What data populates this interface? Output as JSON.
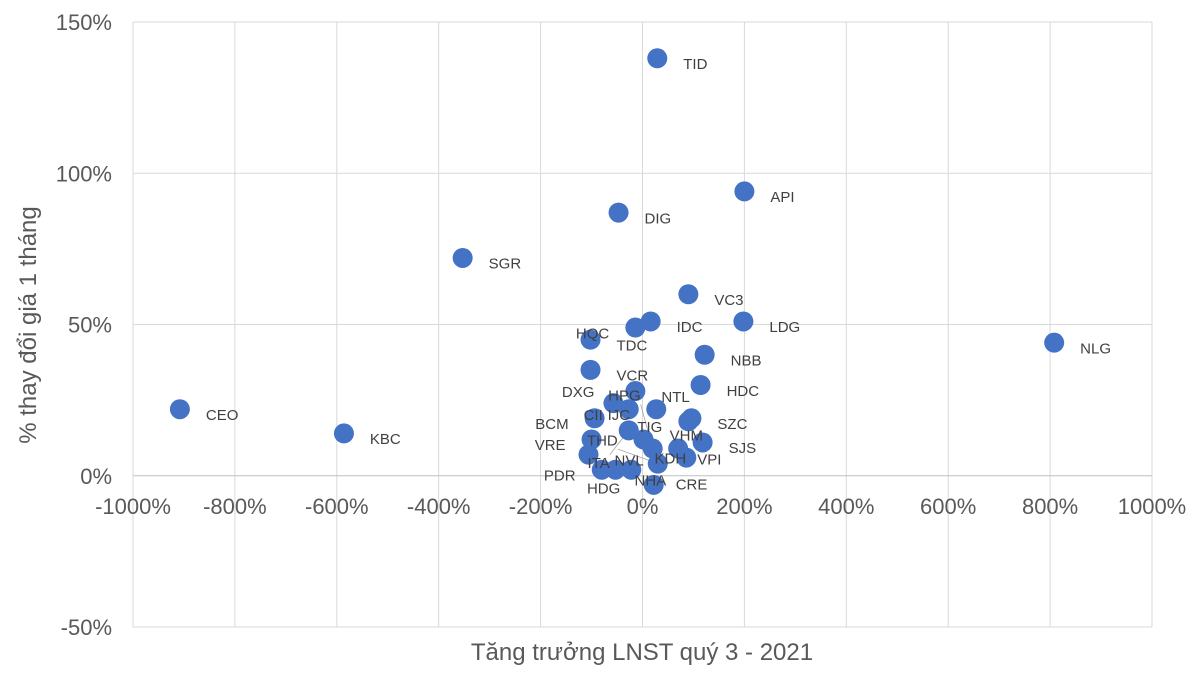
{
  "chart_data": {
    "type": "scatter",
    "title": "",
    "xlabel": "Tăng trưởng LNST quý 3 - 2021",
    "ylabel": "% thay đổi giá 1 tháng",
    "xlim": [
      -1000,
      1000
    ],
    "ylim": [
      -50,
      150
    ],
    "xticks": [
      -1000,
      -800,
      -600,
      -400,
      -200,
      0,
      200,
      400,
      600,
      800,
      1000
    ],
    "yticks": [
      -50,
      0,
      50,
      100,
      150
    ],
    "tick_format": "percent",
    "grid": true,
    "marker_color": "#4472C4",
    "points": [
      {
        "label": "TID",
        "x": 29,
        "y": 138
      },
      {
        "label": "API",
        "x": 200,
        "y": 94
      },
      {
        "label": "DIG",
        "x": -47,
        "y": 87
      },
      {
        "label": "SGR",
        "x": -353,
        "y": 72
      },
      {
        "label": "VC3",
        "x": 90,
        "y": 60
      },
      {
        "label": "LDG",
        "x": 198,
        "y": 51
      },
      {
        "label": "IDC",
        "x": 16,
        "y": 51
      },
      {
        "label": "HQC",
        "x": -14,
        "y": 49
      },
      {
        "label": "NLG",
        "x": 808,
        "y": 44
      },
      {
        "label": "TDC",
        "x": -102,
        "y": 45
      },
      {
        "label": "NBB",
        "x": 122,
        "y": 40
      },
      {
        "label": "VCR",
        "x": -102,
        "y": 35
      },
      {
        "label": "HDC",
        "x": 114,
        "y": 30
      },
      {
        "label": "NTL",
        "x": -14,
        "y": 28
      },
      {
        "label": "CEO",
        "x": -908,
        "y": 22
      },
      {
        "label": "KBC",
        "x": -586,
        "y": 14
      },
      {
        "label": "DXG",
        "x": -57,
        "y": 24
      },
      {
        "label": "CII",
        "x": -27,
        "y": 22
      },
      {
        "label": "IJC",
        "x": 27,
        "y": 22
      },
      {
        "label": "SZC",
        "x": 96,
        "y": 19
      },
      {
        "label": "TIG",
        "x": 90,
        "y": 18
      },
      {
        "label": "BCM",
        "x": -94,
        "y": 19
      },
      {
        "label": "ITA",
        "x": -27,
        "y": 15
      },
      {
        "label": "KDH",
        "x": 2,
        "y": 12
      },
      {
        "label": "VRE",
        "x": -100,
        "y": 12
      },
      {
        "label": "HPG",
        "x": 20,
        "y": 9
      },
      {
        "label": "VPI",
        "x": 70,
        "y": 9
      },
      {
        "label": "SJS",
        "x": 118,
        "y": 11
      },
      {
        "label": "VHM",
        "x": 86,
        "y": 6
      },
      {
        "label": "NVL",
        "x": -106,
        "y": 7
      },
      {
        "label": "PDR",
        "x": -80,
        "y": 2
      },
      {
        "label": "NHA",
        "x": -53,
        "y": 2
      },
      {
        "label": "HDG",
        "x": -22,
        "y": 2
      },
      {
        "label": "THD",
        "x": 30,
        "y": 4
      },
      {
        "label": "CRE",
        "x": 22,
        "y": -3
      }
    ]
  }
}
